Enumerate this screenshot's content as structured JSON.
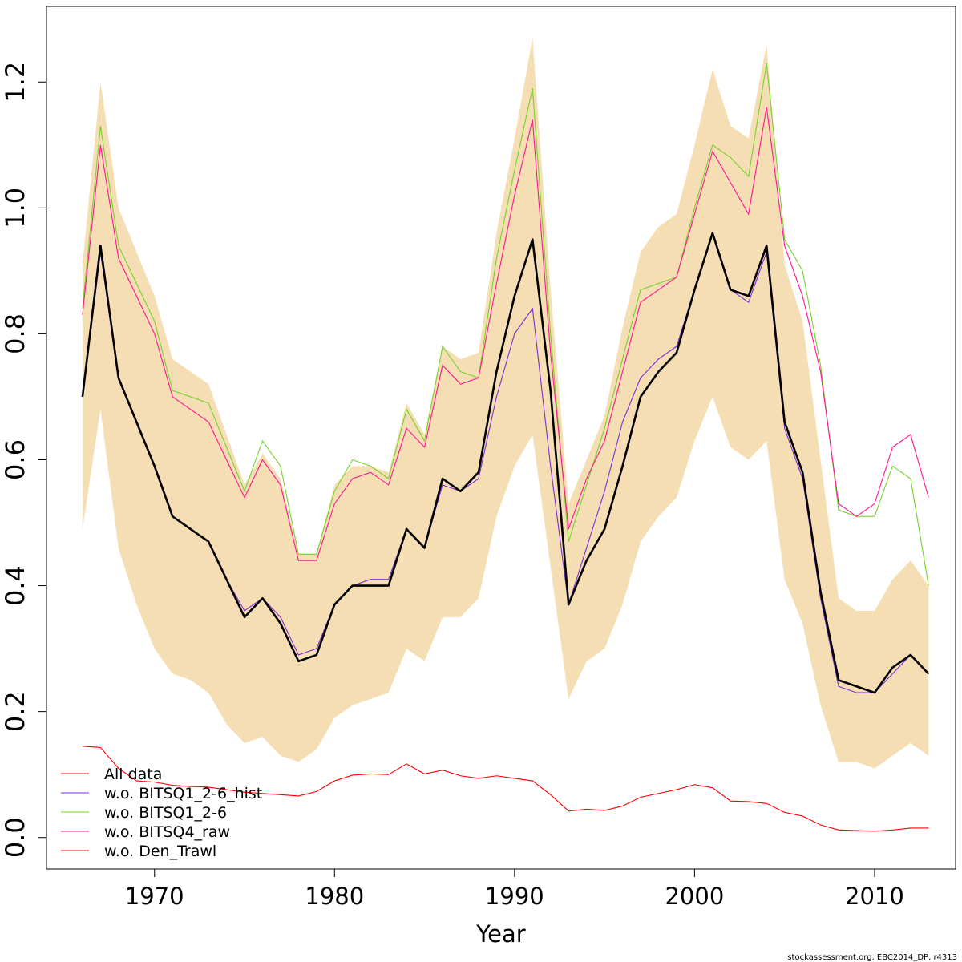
{
  "chart_data": {
    "type": "line",
    "xlabel": "Year",
    "ylabel": "",
    "xlim": [
      1964,
      2014.5
    ],
    "ylim": [
      -0.05,
      1.32
    ],
    "xticks": [
      1970,
      1980,
      1990,
      2000,
      2010
    ],
    "yticks": [
      0.0,
      0.2,
      0.4,
      0.6,
      0.8,
      1.0,
      1.2
    ],
    "xtick_labels": [
      "1970",
      "1980",
      "1990",
      "2000",
      "2010"
    ],
    "ytick_labels": [
      "0.0",
      "0.2",
      "0.4",
      "0.6",
      "0.8",
      "1.0",
      "1.2"
    ],
    "grid": false,
    "legend_position": "bottom-left",
    "x": [
      1966,
      1967,
      1968,
      1969,
      1970,
      1971,
      1972,
      1973,
      1974,
      1975,
      1976,
      1977,
      1978,
      1979,
      1980,
      1981,
      1982,
      1983,
      1984,
      1985,
      1986,
      1987,
      1988,
      1989,
      1990,
      1991,
      1992,
      1993,
      1994,
      1995,
      1996,
      1997,
      1998,
      1999,
      2000,
      2001,
      2002,
      2003,
      2004,
      2005,
      2006,
      2007,
      2008,
      2009,
      2010,
      2011,
      2012,
      2013
    ],
    "band": {
      "color": "#f5deb3",
      "upper": [
        0.91,
        1.2,
        1.0,
        0.93,
        0.86,
        0.76,
        0.74,
        0.72,
        0.64,
        0.56,
        0.61,
        0.57,
        0.45,
        0.45,
        0.56,
        0.59,
        0.59,
        0.58,
        0.69,
        0.64,
        0.78,
        0.76,
        0.77,
        0.96,
        1.11,
        1.27,
        0.87,
        0.53,
        0.6,
        0.67,
        0.81,
        0.93,
        0.97,
        0.99,
        1.1,
        1.22,
        1.13,
        1.11,
        1.26,
        0.91,
        0.82,
        0.6,
        0.38,
        0.36,
        0.36,
        0.41,
        0.44,
        0.4
      ],
      "lower": [
        0.49,
        0.68,
        0.46,
        0.37,
        0.3,
        0.26,
        0.25,
        0.23,
        0.18,
        0.15,
        0.16,
        0.13,
        0.12,
        0.14,
        0.19,
        0.21,
        0.22,
        0.23,
        0.3,
        0.28,
        0.35,
        0.35,
        0.38,
        0.51,
        0.59,
        0.64,
        0.43,
        0.22,
        0.28,
        0.3,
        0.37,
        0.47,
        0.51,
        0.54,
        0.63,
        0.7,
        0.62,
        0.6,
        0.63,
        0.41,
        0.34,
        0.21,
        0.12,
        0.12,
        0.11,
        0.13,
        0.15,
        0.13
      ]
    },
    "main_line": {
      "color": "#000000",
      "values": [
        0.7,
        0.94,
        0.73,
        0.66,
        0.59,
        0.51,
        0.49,
        0.47,
        0.41,
        0.35,
        0.38,
        0.34,
        0.28,
        0.29,
        0.37,
        0.4,
        0.4,
        0.4,
        0.49,
        0.46,
        0.57,
        0.55,
        0.58,
        0.74,
        0.86,
        0.95,
        0.71,
        0.37,
        0.44,
        0.49,
        0.59,
        0.7,
        0.74,
        0.77,
        0.87,
        0.96,
        0.87,
        0.86,
        0.94,
        0.66,
        0.58,
        0.39,
        0.25,
        0.24,
        0.23,
        0.27,
        0.29,
        0.26
      ]
    },
    "series": [
      {
        "name": "All data",
        "color": "#ff0000",
        "values": [
          0.7,
          0.94,
          0.73,
          0.66,
          0.59,
          0.51,
          0.49,
          0.47,
          0.41,
          0.35,
          0.38,
          0.34,
          0.28,
          0.29,
          0.37,
          0.4,
          0.4,
          0.4,
          0.49,
          0.46,
          0.57,
          0.55,
          0.58,
          0.74,
          0.86,
          0.95,
          0.71,
          0.37,
          0.44,
          0.49,
          0.59,
          0.7,
          0.74,
          0.77,
          0.87,
          0.96,
          0.87,
          0.86,
          0.94,
          0.66,
          0.58,
          0.39,
          0.25,
          0.24,
          0.23,
          0.27,
          0.29,
          0.26
        ]
      },
      {
        "name": "w.o. BITSQ1_2-6_hist",
        "color": "#7b2dd1",
        "values": [
          0.7,
          0.93,
          0.73,
          0.66,
          0.59,
          0.51,
          0.49,
          0.47,
          0.41,
          0.36,
          0.38,
          0.35,
          0.29,
          0.3,
          0.37,
          0.4,
          0.41,
          0.41,
          0.49,
          0.46,
          0.56,
          0.55,
          0.57,
          0.7,
          0.8,
          0.84,
          0.59,
          0.37,
          0.46,
          0.55,
          0.66,
          0.73,
          0.76,
          0.78,
          0.87,
          0.96,
          0.87,
          0.85,
          0.93,
          0.65,
          0.57,
          0.38,
          0.24,
          0.23,
          0.23,
          0.26,
          0.29,
          0.26
        ]
      },
      {
        "name": "w.o. BITSQ1_2-6",
        "color": "#77d12d",
        "values": [
          0.84,
          1.13,
          0.94,
          0.88,
          0.82,
          0.71,
          0.7,
          0.69,
          0.62,
          0.55,
          0.63,
          0.59,
          0.45,
          0.45,
          0.55,
          0.6,
          0.59,
          0.57,
          0.68,
          0.63,
          0.78,
          0.74,
          0.73,
          0.92,
          1.06,
          1.19,
          0.8,
          0.47,
          0.56,
          0.65,
          0.76,
          0.87,
          0.88,
          0.89,
          1.0,
          1.1,
          1.08,
          1.05,
          1.23,
          0.95,
          0.9,
          0.75,
          0.52,
          0.51,
          0.51,
          0.59,
          0.57,
          0.4
        ]
      },
      {
        "name": "w.o. BITSQ4_raw",
        "color": "#ff1493",
        "values": [
          0.83,
          1.1,
          0.92,
          0.86,
          0.8,
          0.7,
          0.68,
          0.66,
          0.6,
          0.54,
          0.6,
          0.56,
          0.44,
          0.44,
          0.53,
          0.57,
          0.58,
          0.56,
          0.65,
          0.62,
          0.75,
          0.72,
          0.73,
          0.88,
          1.02,
          1.14,
          0.77,
          0.49,
          0.57,
          0.63,
          0.74,
          0.85,
          0.87,
          0.89,
          0.99,
          1.09,
          1.04,
          0.99,
          1.16,
          0.94,
          0.86,
          0.74,
          0.53,
          0.51,
          0.53,
          0.62,
          0.64,
          0.54
        ]
      },
      {
        "name": "w.o. Den_Trawl",
        "color": "#ff0000",
        "values": [
          0.145,
          0.143,
          0.11,
          0.09,
          0.088,
          0.083,
          0.081,
          0.08,
          0.076,
          0.072,
          0.07,
          0.068,
          0.066,
          0.073,
          0.09,
          0.099,
          0.101,
          0.1,
          0.117,
          0.101,
          0.107,
          0.098,
          0.094,
          0.098,
          0.094,
          0.09,
          0.068,
          0.042,
          0.045,
          0.043,
          0.05,
          0.064,
          0.07,
          0.076,
          0.084,
          0.079,
          0.058,
          0.057,
          0.054,
          0.04,
          0.034,
          0.02,
          0.012,
          0.011,
          0.01,
          0.012,
          0.015,
          0.015
        ]
      }
    ]
  },
  "footer_text": "stockassessment.org, EBC2014_DP, r4313"
}
